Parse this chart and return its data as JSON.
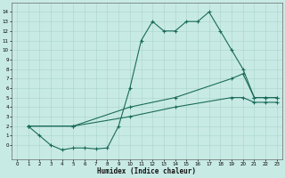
{
  "xlabel": "Humidex (Indice chaleur)",
  "bg_color": "#c8eae4",
  "grid_color": "#a8d4ce",
  "line_color": "#1a6b5a",
  "line1_x": [
    1,
    2,
    3,
    4,
    5,
    6,
    7,
    8,
    9,
    10,
    11,
    12,
    13,
    14,
    15,
    16,
    17,
    18,
    19,
    20,
    21,
    22,
    23
  ],
  "line1_y": [
    2,
    1,
    0,
    -0.5,
    -0.3,
    -0.3,
    -0.4,
    -0.3,
    2,
    6,
    11,
    13,
    12,
    12,
    13,
    13,
    14,
    12,
    10,
    8,
    5,
    5,
    5
  ],
  "line2_x": [
    1,
    5,
    10,
    14,
    19,
    20,
    21,
    22,
    23
  ],
  "line2_y": [
    2,
    2,
    4,
    5,
    7,
    7.5,
    5,
    5,
    5
  ],
  "line3_x": [
    1,
    5,
    10,
    14,
    19,
    20,
    21,
    22,
    23
  ],
  "line3_y": [
    2,
    2,
    3,
    4,
    5,
    5,
    4.5,
    4.5,
    4.5
  ],
  "xlim": [
    -0.5,
    23.5
  ],
  "ylim": [
    -1.5,
    15
  ],
  "xticks": [
    0,
    1,
    2,
    3,
    4,
    5,
    6,
    7,
    8,
    9,
    10,
    11,
    12,
    13,
    14,
    15,
    16,
    17,
    18,
    19,
    20,
    21,
    22,
    23
  ],
  "yticks": [
    0,
    1,
    2,
    3,
    4,
    5,
    6,
    7,
    8,
    9,
    10,
    11,
    12,
    13,
    14
  ]
}
